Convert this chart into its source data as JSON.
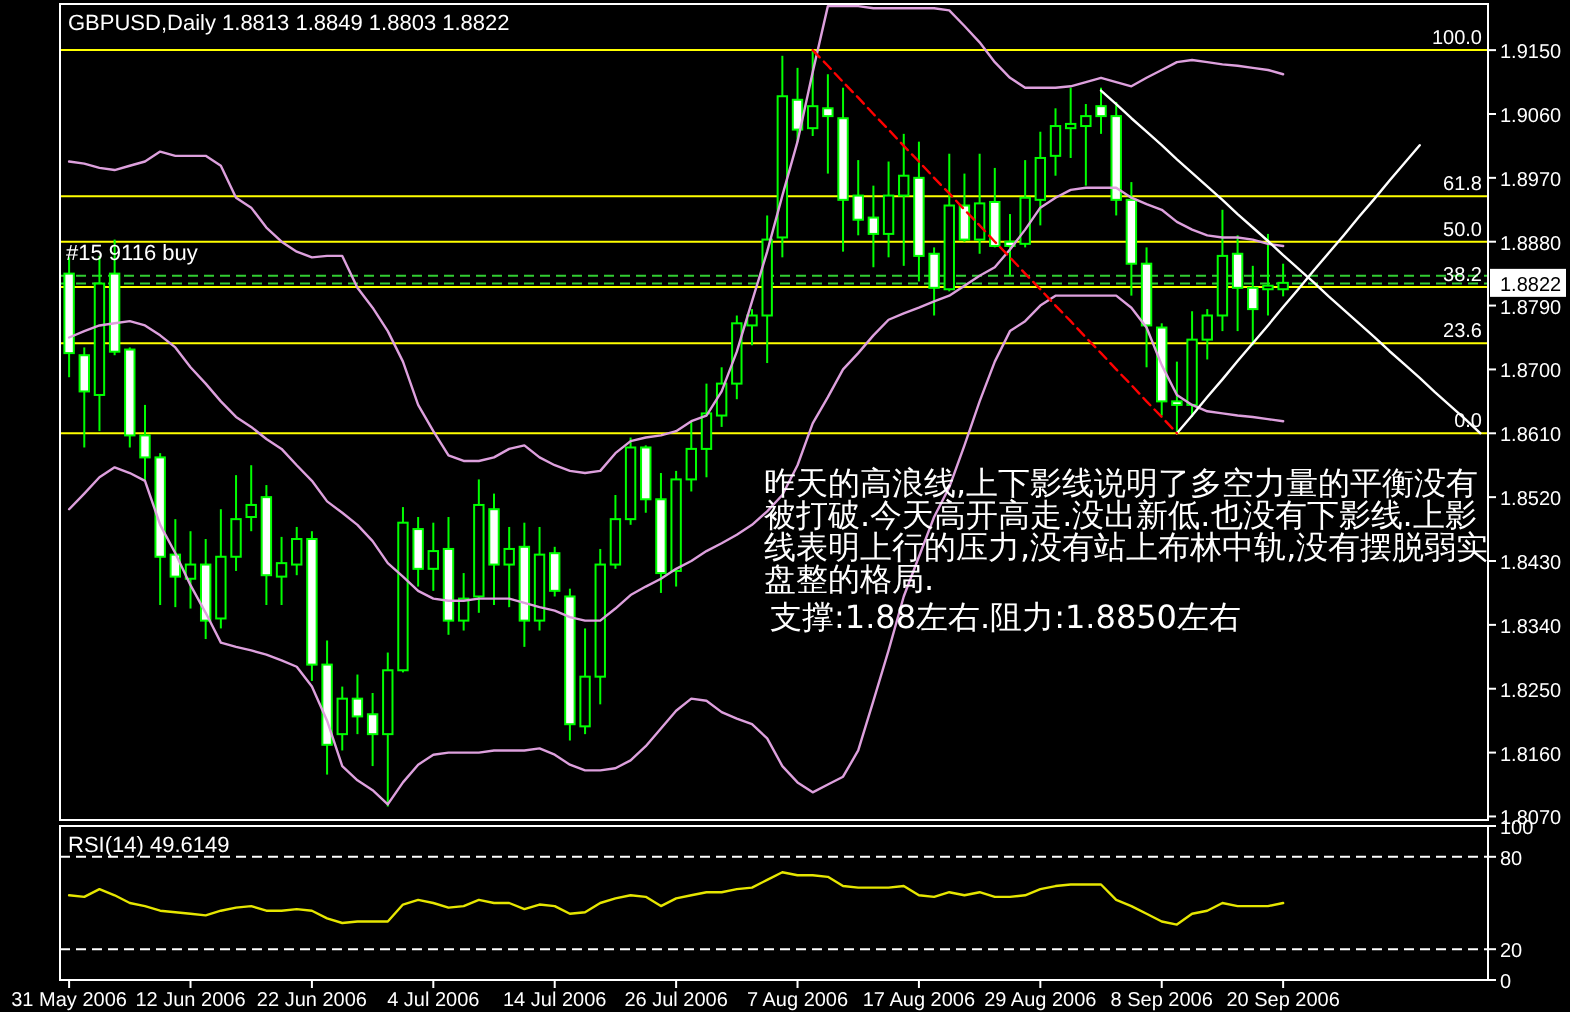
{
  "chart_data": [
    {
      "type": "candlestick",
      "title": "GBPUSD,Daily  1.8813 1.8849 1.8803 1.8822",
      "color": "#00ff00",
      "categories": [
        null,
        null,
        null,
        null,
        null,
        null,
        null,
        null,
        null,
        null,
        null,
        null,
        null,
        null,
        null,
        null,
        null,
        null,
        null,
        null,
        null,
        null,
        null,
        null,
        null,
        null,
        null,
        null,
        null,
        null,
        null,
        null,
        null,
        null,
        null,
        null,
        null,
        null,
        null,
        null,
        null,
        null,
        null,
        null,
        null,
        null,
        null,
        null,
        null,
        null,
        null,
        null,
        null,
        null,
        null,
        null,
        null,
        null,
        null,
        null,
        null,
        null,
        null,
        null,
        null,
        null,
        null,
        null,
        null,
        null,
        null,
        null,
        null,
        null,
        null,
        null,
        null,
        null,
        null,
        null,
        null,
        null,
        null,
        null,
        null,
        null,
        null,
        null,
        null,
        null,
        null,
        null,
        null,
        null
      ],
      "ohlc": [
        [
          1.8835,
          1.8858,
          1.8689,
          1.8723
        ],
        [
          1.872,
          1.8731,
          1.859,
          1.8669
        ],
        [
          1.8664,
          1.886,
          1.8613,
          1.8821
        ],
        [
          1.8835,
          1.8883,
          1.872,
          1.8725
        ],
        [
          1.8728,
          1.8731,
          1.859,
          1.8607
        ],
        [
          1.8607,
          1.865,
          1.8543,
          1.8576
        ],
        [
          1.8576,
          1.8582,
          1.8368,
          1.8436
        ],
        [
          1.8439,
          1.8489,
          1.8365,
          1.8408
        ],
        [
          1.8405,
          1.8472,
          1.8363,
          1.8425
        ],
        [
          1.8425,
          1.8461,
          1.832,
          1.8346
        ],
        [
          1.8349,
          1.8503,
          1.8335,
          1.8436
        ],
        [
          1.8436,
          1.8551,
          1.8416,
          1.8489
        ],
        [
          1.8492,
          1.8565,
          1.8472,
          1.8509
        ],
        [
          1.852,
          1.8537,
          1.8368,
          1.841
        ],
        [
          1.8408,
          1.8464,
          1.8368,
          1.8427
        ],
        [
          1.8425,
          1.8478,
          1.841,
          1.8461
        ],
        [
          1.8461,
          1.8472,
          1.8261,
          1.8284
        ],
        [
          1.8284,
          1.8318,
          1.8129,
          1.8171
        ],
        [
          1.8186,
          1.8253,
          1.8163,
          1.8236
        ],
        [
          1.8236,
          1.827,
          1.8186,
          1.8211
        ],
        [
          1.8214,
          1.8244,
          1.8141,
          1.8186
        ],
        [
          1.8186,
          1.8301,
          1.8084,
          1.8276
        ],
        [
          1.8276,
          1.8506,
          1.8273,
          1.8484
        ],
        [
          1.8475,
          1.8492,
          1.8394,
          1.8419
        ],
        [
          1.8419,
          1.8484,
          1.8388,
          1.8444
        ],
        [
          1.8447,
          1.8492,
          1.8326,
          1.8346
        ],
        [
          1.8346,
          1.8413,
          1.8332,
          1.8377
        ],
        [
          1.838,
          1.8545,
          1.8357,
          1.8509
        ],
        [
          1.8503,
          1.8525,
          1.8368,
          1.8425
        ],
        [
          1.8425,
          1.8478,
          1.8365,
          1.8447
        ],
        [
          1.845,
          1.8484,
          1.8309,
          1.8346
        ],
        [
          1.8346,
          1.8478,
          1.8332,
          1.8439
        ],
        [
          1.8441,
          1.845,
          1.838,
          1.8388
        ],
        [
          1.838,
          1.8391,
          1.8177,
          1.82
        ],
        [
          1.8197,
          1.8335,
          1.8186,
          1.8267
        ],
        [
          1.8267,
          1.8447,
          1.8228,
          1.8425
        ],
        [
          1.8425,
          1.8523,
          1.8419,
          1.8489
        ],
        [
          1.8489,
          1.8604,
          1.8481,
          1.859
        ],
        [
          1.859,
          1.8593,
          1.8498,
          1.8517
        ],
        [
          1.8517,
          1.8554,
          1.8385,
          1.8413
        ],
        [
          1.8416,
          1.8557,
          1.8394,
          1.8545
        ],
        [
          1.8545,
          1.8627,
          1.8528,
          1.8588
        ],
        [
          1.8588,
          1.868,
          1.8548,
          1.8638
        ],
        [
          1.8635,
          1.8703,
          1.8619,
          1.868
        ],
        [
          1.868,
          1.8776,
          1.8658,
          1.8765
        ],
        [
          1.8762,
          1.8785,
          1.8734,
          1.8776
        ],
        [
          1.8776,
          1.8917,
          1.8709,
          1.8883
        ],
        [
          1.8886,
          1.9142,
          1.8858,
          1.9085
        ],
        [
          1.908,
          1.9125,
          1.9021,
          1.9038
        ],
        [
          1.904,
          1.915,
          1.9029,
          1.9071
        ],
        [
          1.9068,
          1.9116,
          1.8976,
          1.9057
        ],
        [
          1.9054,
          1.9097,
          1.8866,
          1.8939
        ],
        [
          1.8945,
          1.8995,
          1.8889,
          1.8911
        ],
        [
          1.8914,
          1.8959,
          1.8844,
          1.8891
        ],
        [
          1.8891,
          1.8993,
          1.8858,
          1.8945
        ],
        [
          1.8945,
          1.9032,
          1.8846,
          1.8973
        ],
        [
          1.897,
          1.9021,
          1.8824,
          1.886
        ],
        [
          1.8863,
          1.8872,
          1.8776,
          1.8815
        ],
        [
          1.8813,
          1.9004,
          1.881,
          1.8931
        ],
        [
          1.8931,
          1.8976,
          1.888,
          1.8883
        ],
        [
          1.8883,
          1.9004,
          1.8863,
          1.8934
        ],
        [
          1.8936,
          1.8984,
          1.8872,
          1.8874
        ],
        [
          1.888,
          1.8919,
          1.8832,
          1.8874
        ],
        [
          1.8877,
          1.8995,
          1.8872,
          1.8942
        ],
        [
          1.8939,
          1.9035,
          1.8903,
          1.8998
        ],
        [
          1.9001,
          1.9068,
          1.8973,
          1.9043
        ],
        [
          1.904,
          1.9097,
          1.8998,
          1.9046
        ],
        [
          1.9043,
          1.9074,
          1.8959,
          1.9057
        ],
        [
          1.9071,
          1.9097,
          1.9032,
          1.9057
        ],
        [
          1.9057,
          1.9077,
          1.8917,
          1.8939
        ],
        [
          1.8939,
          1.8964,
          1.8804,
          1.8849
        ],
        [
          1.8849,
          1.8872,
          1.8703,
          1.8762
        ],
        [
          1.8759,
          1.8765,
          1.8635,
          1.8655
        ],
        [
          1.8655,
          1.8711,
          1.861,
          1.865
        ],
        [
          1.865,
          1.8782,
          1.8633,
          1.8742
        ],
        [
          1.8742,
          1.8785,
          1.8714,
          1.8776
        ],
        [
          1.8776,
          1.8925,
          1.8754,
          1.886
        ],
        [
          1.8863,
          1.8889,
          1.8754,
          1.8815
        ],
        [
          1.8815,
          1.8846,
          1.8734,
          1.8785
        ],
        [
          1.8813,
          1.8891,
          1.8776,
          1.8818
        ],
        [
          1.8813,
          1.8849,
          1.8803,
          1.8822
        ],
        null,
        null,
        null,
        null,
        null,
        null,
        null,
        null,
        null,
        null,
        null,
        null,
        null
      ],
      "series": [
        {
          "type": "line",
          "color": "#dda0dd",
          "values": [
            1.8993,
            1.899,
            1.8984,
            1.8981,
            1.8987,
            1.8993,
            1.9007,
            1.9001,
            1.9001,
            1.9001,
            1.8987,
            1.8942,
            1.8928,
            1.89,
            1.888,
            1.8866,
            1.8858,
            1.886,
            1.886,
            1.8815,
            1.8787,
            1.8754,
            1.8711,
            1.865,
            1.8613,
            1.8579,
            1.8571,
            1.8571,
            1.8576,
            1.8588,
            1.8593,
            1.8576,
            1.8565,
            1.8557,
            1.8554,
            1.8557,
            1.8582,
            1.8599,
            1.8604,
            1.8607,
            1.8613,
            1.8627,
            1.8635,
            1.8669,
            1.8725,
            1.8796,
            1.8866,
            1.8945,
            1.9021,
            1.9119,
            1.9212,
            1.9212,
            1.9212,
            1.9209,
            1.9209,
            1.9209,
            1.9209,
            1.9209,
            1.9206,
            1.9184,
            1.9161,
            1.9133,
            1.9111,
            1.9097,
            1.9097,
            1.9097,
            1.9099,
            1.9105,
            1.9111,
            1.9105,
            1.9099,
            1.9111,
            1.9122,
            1.9133,
            1.9136,
            1.9133,
            1.913,
            1.9128,
            1.9125,
            1.9122,
            1.9116,
            null,
            null,
            null,
            null,
            null,
            null,
            null,
            null,
            null,
            null,
            null,
            null,
            null
          ]
        },
        {
          "type": "line",
          "color": "#dda0dd",
          "values": [
            1.8745,
            1.8754,
            1.8762,
            1.8765,
            1.8768,
            1.8762,
            1.8748,
            1.8731,
            1.8703,
            1.868,
            1.8655,
            1.8633,
            1.8619,
            1.8602,
            1.8588,
            1.8565,
            1.8543,
            1.8514,
            1.8498,
            1.8481,
            1.8458,
            1.8427,
            1.8408,
            1.8388,
            1.8377,
            1.8374,
            1.8374,
            1.8377,
            1.8377,
            1.8377,
            1.8371,
            1.8365,
            1.836,
            1.8351,
            1.8346,
            1.8346,
            1.8363,
            1.8382,
            1.8394,
            1.8405,
            1.8419,
            1.843,
            1.8444,
            1.8455,
            1.8467,
            1.8481,
            1.85,
            1.8523,
            1.8565,
            1.8624,
            1.8661,
            1.87,
            1.8723,
            1.8748,
            1.877,
            1.8779,
            1.8787,
            1.8796,
            1.8804,
            1.8818,
            1.8832,
            1.8844,
            1.8869,
            1.8897,
            1.8928,
            1.8942,
            1.8953,
            1.8956,
            1.8956,
            1.8956,
            1.8942,
            1.8933,
            1.8925,
            1.8908,
            1.8897,
            1.8889,
            1.8886,
            1.8886,
            1.8883,
            1.8877,
            1.8874,
            null,
            null,
            null,
            null,
            null,
            null,
            null,
            null,
            null,
            null,
            null,
            null,
            null
          ]
        },
        {
          "type": "line",
          "color": "#dda0dd",
          "values": [
            1.8503,
            1.8525,
            1.8548,
            1.8562,
            1.8554,
            1.8543,
            1.8481,
            1.8441,
            1.8396,
            1.8357,
            1.8315,
            1.8309,
            1.8304,
            1.8298,
            1.829,
            1.8281,
            1.8253,
            1.8205,
            1.8141,
            1.8121,
            1.8107,
            1.8087,
            1.8118,
            1.8143,
            1.8157,
            1.816,
            1.816,
            1.816,
            1.8163,
            1.8163,
            1.8163,
            1.8166,
            1.8157,
            1.8143,
            1.8135,
            1.8135,
            1.8138,
            1.8149,
            1.8169,
            1.8194,
            1.8219,
            1.8236,
            1.8233,
            1.8217,
            1.8208,
            1.82,
            1.818,
            1.8141,
            1.8118,
            1.8104,
            1.8115,
            1.8126,
            1.8163,
            1.8233,
            1.8304,
            1.838,
            1.8436,
            1.8492,
            1.8534,
            1.8593,
            1.8655,
            1.8711,
            1.8754,
            1.8768,
            1.879,
            1.8804,
            1.8804,
            1.8804,
            1.8804,
            1.8804,
            1.8787,
            1.8759,
            1.8706,
            1.8664,
            1.865,
            1.8641,
            1.8638,
            1.8635,
            1.8633,
            1.863,
            1.8627,
            null,
            null,
            null,
            null,
            null,
            null,
            null,
            null,
            null,
            null,
            null,
            null,
            null
          ]
        },
        {
          "type": "line",
          "color": "#ffffff",
          "values": [
            null,
            null,
            null,
            null,
            null,
            null,
            null,
            null,
            null,
            null,
            null,
            null,
            null,
            null,
            null,
            null,
            null,
            null,
            null,
            null,
            null,
            null,
            null,
            null,
            null,
            null,
            null,
            null,
            null,
            null,
            null,
            null,
            null,
            null,
            null,
            null,
            null,
            null,
            null,
            null,
            null,
            null,
            null,
            null,
            null,
            null,
            null,
            null,
            null,
            null,
            null,
            null,
            null,
            null,
            null,
            null,
            null,
            null,
            null,
            null,
            null,
            null,
            null,
            null,
            null,
            null,
            null,
            null,
            1.9093,
            1.9074,
            1.9054,
            1.9035,
            1.9016,
            1.8996,
            1.8977,
            1.8958,
            1.8939,
            1.8919,
            1.89,
            1.8881,
            1.8861,
            1.8842,
            1.8823,
            1.8803,
            1.8784,
            1.8765,
            1.8746,
            1.8726,
            1.8707,
            1.8688,
            1.8668,
            1.8649,
            1.863,
            1.861
          ]
        },
        {
          "type": "line",
          "color": "#ffffff",
          "values": [
            null,
            null,
            null,
            null,
            null,
            null,
            null,
            null,
            null,
            null,
            null,
            null,
            null,
            null,
            null,
            null,
            null,
            null,
            null,
            null,
            null,
            null,
            null,
            null,
            null,
            null,
            null,
            null,
            null,
            null,
            null,
            null,
            null,
            null,
            null,
            null,
            null,
            null,
            null,
            null,
            null,
            null,
            null,
            null,
            null,
            null,
            null,
            null,
            null,
            null,
            null,
            null,
            null,
            null,
            null,
            null,
            null,
            null,
            null,
            null,
            null,
            null,
            null,
            null,
            null,
            null,
            null,
            null,
            null,
            null,
            null,
            null,
            null,
            1.861,
            1.8635,
            1.8661,
            1.8686,
            1.8712,
            1.8737,
            1.8762,
            1.8788,
            1.8813,
            1.8839,
            1.8864,
            1.8889,
            1.8915,
            1.894,
            1.8966,
            1.8991,
            1.9016,
            null,
            null,
            null,
            null
          ]
        },
        {
          "type": "line",
          "color": "#ff0000",
          "line_style": "dashed",
          "values": [
            null,
            null,
            null,
            null,
            null,
            null,
            null,
            null,
            null,
            null,
            null,
            null,
            null,
            null,
            null,
            null,
            null,
            null,
            null,
            null,
            null,
            null,
            null,
            null,
            null,
            null,
            null,
            null,
            null,
            null,
            null,
            null,
            null,
            null,
            null,
            null,
            null,
            null,
            null,
            null,
            null,
            null,
            null,
            null,
            null,
            null,
            null,
            null,
            null,
            1.915,
            1.9128,
            1.9105,
            1.9083,
            1.906,
            1.9038,
            1.9015,
            1.8993,
            1.897,
            1.8948,
            1.8925,
            1.8903,
            1.888,
            1.8858,
            1.8835,
            1.8813,
            1.879,
            1.8768,
            1.8745,
            1.8723,
            1.87,
            1.8678,
            1.8655,
            1.8633,
            1.861,
            null,
            null,
            null,
            null,
            null,
            null,
            null,
            null,
            null,
            null,
            null,
            null,
            null,
            null,
            null,
            null,
            null,
            null,
            null,
            null
          ]
        }
      ],
      "ylim": [
        1.8065,
        1.9215
      ],
      "yticks": [
        {
          "value": 1.915,
          "label": "1.9150"
        },
        {
          "value": 1.906,
          "label": "1.9060"
        },
        {
          "value": 1.897,
          "label": "1.8970"
        },
        {
          "value": 1.888,
          "label": "1.8880"
        },
        {
          "value": 1.879,
          "label": "1.8790"
        },
        {
          "value": 1.87,
          "label": "1.8700"
        },
        {
          "value": 1.861,
          "label": "1.8610"
        },
        {
          "value": 1.852,
          "label": "1.8520"
        },
        {
          "value": 1.843,
          "label": "1.8430"
        },
        {
          "value": 1.834,
          "label": "1.8340"
        },
        {
          "value": 1.825,
          "label": "1.8250"
        },
        {
          "value": 1.816,
          "label": "1.8160"
        },
        {
          "value": 1.807,
          "label": "1.8070"
        }
      ],
      "tick_labels": "y",
      "ref_lines": [
        {
          "axis": "y",
          "value": 1.915,
          "color": "#ffff00"
        },
        {
          "axis": "y",
          "value": 1.8944,
          "color": "#ffff00"
        },
        {
          "axis": "y",
          "value": 1.888,
          "color": "#ffff00"
        },
        {
          "axis": "y",
          "value": 1.8816,
          "color": "#ffff00"
        },
        {
          "axis": "y",
          "value": 1.8737,
          "color": "#ffff00"
        },
        {
          "axis": "y",
          "value": 1.861,
          "color": "#ffff00"
        },
        {
          "axis": "y",
          "value": 1.8832,
          "color": "#32cd32",
          "line_style": "dashed"
        },
        {
          "axis": "y",
          "value": 1.8821,
          "color": "#32cd32",
          "line_style": "dashed"
        }
      ],
      "annotations": [
        "昨天的高浪线,上下影线说明了多空力量的平衡没有被打破.今天高开高走.没出新低.也没有下影线.上影线表明上行的压力,没有站上布林中轨,没有摆脱弱实盘整的格局.",
        "支撑:1.88左右.阻力:1.8850左右",
        "1.8822",
        "#15 9116 buy",
        {
          "text": "100.0",
          "y": 1.915
        },
        {
          "text": "61.8",
          "y": 1.8944
        },
        {
          "text": "50.0",
          "y": 1.888
        },
        {
          "text": "38.2",
          "y": 1.8816
        },
        {
          "text": "23.6",
          "y": 1.8737
        },
        {
          "text": "0.0",
          "y": 1.861
        }
      ]
    },
    {
      "type": "line",
      "title": "RSI(14) 49.6149",
      "categories": [
        "31 May 2006",
        null,
        null,
        null,
        null,
        null,
        null,
        null,
        "12 Jun 2006",
        null,
        null,
        null,
        null,
        null,
        null,
        null,
        "22 Jun 2006",
        null,
        null,
        null,
        null,
        null,
        null,
        null,
        "4 Jul 2006",
        null,
        null,
        null,
        null,
        null,
        null,
        null,
        "14 Jul 2006",
        null,
        null,
        null,
        null,
        null,
        null,
        null,
        "26 Jul 2006",
        null,
        null,
        null,
        null,
        null,
        null,
        null,
        "7 Aug 2006",
        null,
        null,
        null,
        null,
        null,
        null,
        null,
        "17 Aug 2006",
        null,
        null,
        null,
        null,
        null,
        null,
        null,
        "29 Aug 2006",
        null,
        null,
        null,
        null,
        null,
        null,
        null,
        "8 Sep 2006",
        null,
        null,
        null,
        null,
        null,
        null,
        null,
        "20 Sep 2006",
        null,
        null,
        null,
        null,
        null,
        null,
        null,
        null,
        null,
        null,
        null,
        null,
        null
      ],
      "series": [
        {
          "color": "#e6e600",
          "values": [
            55,
            54,
            59,
            55,
            50,
            48,
            45,
            44,
            43,
            42,
            45,
            47,
            48,
            45,
            45,
            46,
            45,
            40,
            37,
            38,
            38,
            38,
            49,
            52,
            50,
            47,
            48,
            52,
            50,
            50,
            46,
            49,
            48,
            43,
            44,
            50,
            53,
            55,
            54,
            48,
            53,
            55,
            57,
            57,
            59,
            60,
            65,
            70,
            68,
            68,
            67,
            61,
            60,
            60,
            60,
            61,
            55,
            54,
            57,
            55,
            57,
            54,
            54,
            55,
            59,
            61,
            62,
            62,
            62,
            52,
            48,
            43,
            38,
            36,
            43,
            45,
            50,
            48,
            48,
            48,
            50,
            null,
            null,
            null,
            null,
            null,
            null,
            null,
            null,
            null,
            null,
            null,
            null,
            null
          ]
        }
      ],
      "ylim": [
        0,
        100
      ],
      "yticks": [
        100,
        80,
        20,
        0
      ],
      "ref_lines": [
        {
          "axis": "y",
          "value": 80,
          "color": "#ffffff",
          "line_style": "dashed"
        },
        {
          "axis": "y",
          "value": 20,
          "color": "#ffffff",
          "line_style": "dashed"
        }
      ]
    }
  ]
}
